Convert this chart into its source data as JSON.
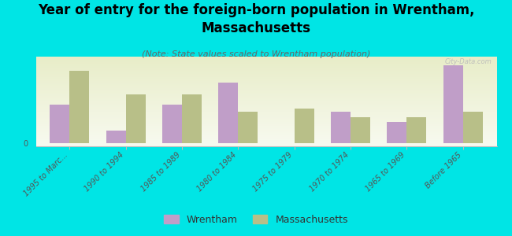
{
  "title": "Year of entry for the foreign-born population in Wrentham,\nMassachusetts",
  "subtitle": "(Note: State values scaled to Wrentham population)",
  "categories": [
    "1995 to Marc...",
    "1990 to 1994",
    "1985 to 1989",
    "1980 to 1984",
    "1975 to 1979",
    "1970 to 1974",
    "1965 to 1969",
    "Before 1965"
  ],
  "wrentham": [
    22,
    7,
    22,
    35,
    0,
    18,
    12,
    45
  ],
  "massachusetts": [
    42,
    28,
    28,
    18,
    20,
    15,
    15,
    18
  ],
  "wrentham_color": "#c09ec8",
  "massachusetts_color": "#b8bf88",
  "background_color": "#00e5e5",
  "plot_bg_top": "#e8edc8",
  "plot_bg_bottom": "#f8faf0",
  "bar_width": 0.35,
  "title_fontsize": 12,
  "subtitle_fontsize": 8,
  "tick_fontsize": 7,
  "legend_fontsize": 9,
  "ylim_max": 50
}
